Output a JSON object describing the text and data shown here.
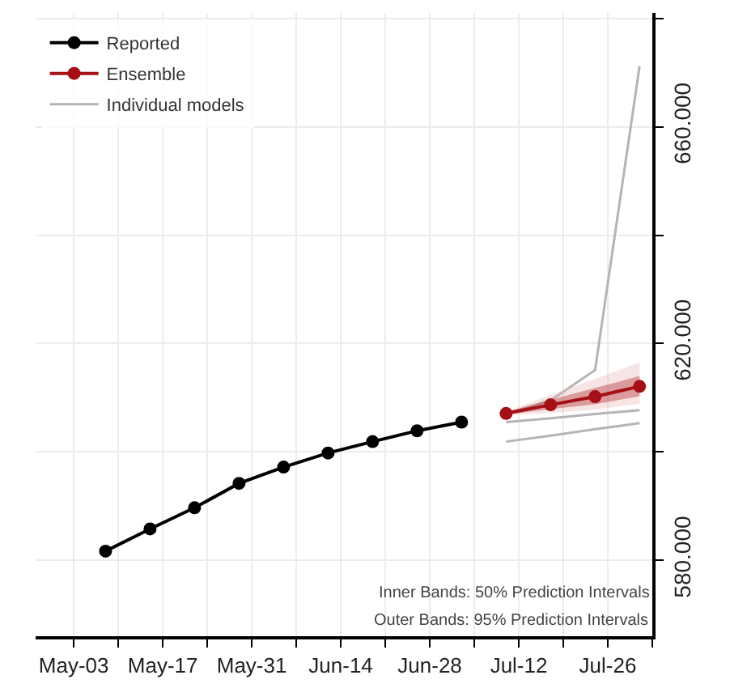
{
  "chart_data": {
    "type": "line",
    "xlim": [
      "--04-27",
      "--08-02"
    ],
    "xticks": [
      {
        "value": "--05-03",
        "label": "May-03"
      },
      {
        "value": "--05-10",
        "label": null
      },
      {
        "value": "--05-17",
        "label": "May-17"
      },
      {
        "value": "--05-24",
        "label": null
      },
      {
        "value": "--05-31",
        "label": "May-31"
      },
      {
        "value": "--06-07",
        "label": null
      },
      {
        "value": "--06-14",
        "label": "Jun-14"
      },
      {
        "value": "--06-21",
        "label": null
      },
      {
        "value": "--06-28",
        "label": "Jun-28"
      },
      {
        "value": "--07-05",
        "label": null
      },
      {
        "value": "--07-12",
        "label": "Jul-12"
      },
      {
        "value": "--07-19",
        "label": null
      },
      {
        "value": "--07-26",
        "label": "Jul-26"
      },
      {
        "value": "--08-02",
        "label": null
      }
    ],
    "ylim": [
      566000,
      681000
    ],
    "yticks": [
      {
        "value": 580000,
        "label": "580.000"
      },
      {
        "value": 600000,
        "label": null
      },
      {
        "value": 620000,
        "label": "620.000"
      },
      {
        "value": 640000,
        "label": null
      },
      {
        "value": 660000,
        "label": "660.000"
      },
      {
        "value": 680000,
        "label": null
      }
    ],
    "grid": true,
    "legend": "top left",
    "series": [
      {
        "name": "Individual models",
        "color": "#b4b4b4",
        "marker": "none",
        "x": [
          "--07-10",
          "--07-17",
          "--07-24",
          "--07-31"
        ],
        "values": [
          607100,
          609500,
          615100,
          671200
        ]
      },
      {
        "color": "#b4b4b4",
        "marker": "none",
        "x": [
          "--07-10",
          "--07-17",
          "--07-24",
          "--07-31"
        ],
        "values": [
          605500,
          606200,
          607000,
          607700
        ]
      },
      {
        "color": "#b4b4b4",
        "marker": "none",
        "x": [
          "--07-10",
          "--07-17",
          "--07-24",
          "--07-31"
        ],
        "values": [
          601900,
          603000,
          604200,
          605300
        ]
      },
      {
        "color": "#e8b4b4",
        "x": [
          "--07-10",
          "--07-17",
          "--07-24",
          "--07-31"
        ],
        "values": [
          null,
          null,
          null,
          null
        ],
        "lower": [
          606700,
          607200,
          607800,
          608900
        ],
        "upper": [
          607500,
          610500,
          613500,
          616500
        ]
      },
      {
        "name": "Ensemble",
        "color": "#a50f15",
        "marker": "circle",
        "x": [
          "--07-10",
          "--07-17",
          "--07-24",
          "--07-31"
        ],
        "values": [
          607100,
          608700,
          610200,
          612100
        ],
        "lower": [
          606900,
          607900,
          608800,
          610300
        ],
        "upper": [
          607300,
          609600,
          611800,
          614000
        ]
      },
      {
        "name": "Reported",
        "color": "#000000",
        "marker": "circle",
        "x": [
          "--05-08",
          "--05-15",
          "--05-22",
          "--05-29",
          "--06-05",
          "--06-12",
          "--06-19",
          "--06-26",
          "--07-03"
        ],
        "values": [
          581700,
          585800,
          589700,
          594200,
          597200,
          599800,
          601900,
          603900,
          605500
        ]
      }
    ],
    "annotations": [
      "Inner Bands: 50% Prediction Intervals",
      "Outer Bands: 95% Prediction Intervals"
    ]
  }
}
